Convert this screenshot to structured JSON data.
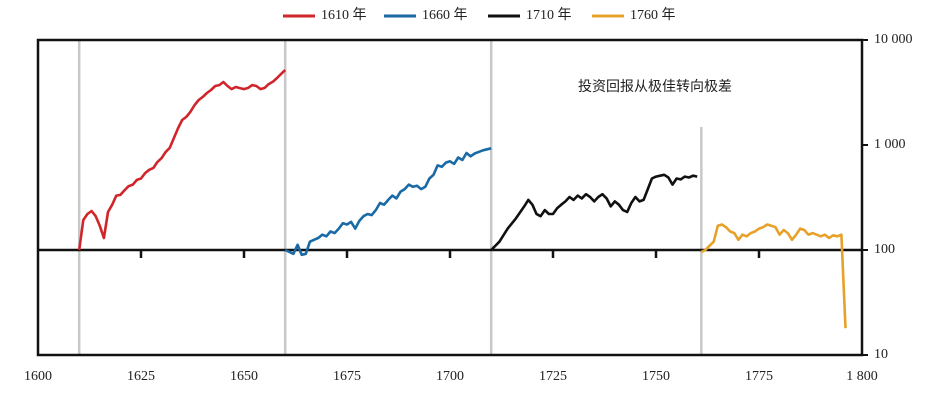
{
  "chart_data": {
    "type": "line",
    "annotation": "投资回报从极佳转向极差",
    "log_y": true,
    "xlim": [
      1600,
      1800
    ],
    "ylim": [
      10,
      10000
    ],
    "xticks": [
      1600,
      1625,
      1650,
      1675,
      1700,
      1725,
      1750,
      1775,
      {
        "value": 1800,
        "label": "1 800"
      }
    ],
    "yticks": [
      {
        "value": 10000,
        "label": "10 000"
      },
      {
        "value": 1000,
        "label": "1 000"
      },
      100,
      10
    ],
    "baseline": 100,
    "series": [
      {
        "name": "1610 年",
        "color": "#d0252b",
        "x": [
          1610,
          1611,
          1612,
          1613,
          1614,
          1615,
          1616,
          1617,
          1618,
          1619,
          1620,
          1621,
          1622,
          1623,
          1624,
          1625,
          1626,
          1627,
          1628,
          1629,
          1630,
          1631,
          1632,
          1633,
          1634,
          1635,
          1636,
          1637,
          1638,
          1639,
          1640,
          1641,
          1642,
          1643,
          1644,
          1645,
          1646,
          1647,
          1648,
          1649,
          1650,
          1651,
          1652,
          1653,
          1654,
          1655,
          1656,
          1657,
          1658,
          1659,
          1660
        ],
        "values": [
          100,
          193,
          220,
          235,
          210,
          170,
          130,
          230,
          270,
          330,
          335,
          370,
          405,
          420,
          465,
          480,
          540,
          580,
          605,
          690,
          750,
          860,
          940,
          1170,
          1450,
          1730,
          1850,
          2070,
          2400,
          2680,
          2870,
          3130,
          3340,
          3650,
          3720,
          3980,
          3650,
          3410,
          3570,
          3480,
          3410,
          3500,
          3720,
          3650,
          3410,
          3500,
          3800,
          4000,
          4350,
          4750,
          5180
        ]
      },
      {
        "name": "1660 年",
        "color": "#1a6aa6",
        "x": [
          1660,
          1662,
          1663,
          1664,
          1665,
          1666,
          1667,
          1668,
          1669,
          1670,
          1671,
          1672,
          1673,
          1674,
          1675,
          1676,
          1677,
          1678,
          1679,
          1680,
          1681,
          1682,
          1683,
          1684,
          1685,
          1686,
          1687,
          1688,
          1689,
          1690,
          1691,
          1692,
          1693,
          1694,
          1695,
          1696,
          1697,
          1698,
          1699,
          1700,
          1701,
          1702,
          1703,
          1704,
          1705,
          1706,
          1707,
          1708,
          1709,
          1710
        ],
        "values": [
          100,
          92,
          112,
          90,
          92,
          120,
          125,
          130,
          140,
          135,
          150,
          145,
          160,
          180,
          175,
          185,
          160,
          190,
          210,
          220,
          215,
          240,
          280,
          270,
          300,
          330,
          310,
          360,
          380,
          420,
          400,
          410,
          380,
          400,
          480,
          520,
          640,
          620,
          680,
          700,
          660,
          760,
          720,
          840,
          780,
          830,
          860,
          890,
          910,
          930
        ]
      },
      {
        "name": "1710 年",
        "color": "#111111",
        "x": [
          1710,
          1712,
          1714,
          1716,
          1718,
          1719,
          1720,
          1721,
          1722,
          1723,
          1724,
          1725,
          1726,
          1727,
          1728,
          1729,
          1730,
          1731,
          1732,
          1733,
          1734,
          1735,
          1736,
          1737,
          1738,
          1739,
          1740,
          1741,
          1742,
          1743,
          1744,
          1745,
          1746,
          1747,
          1748,
          1749,
          1750,
          1751,
          1752,
          1753,
          1754,
          1755,
          1756,
          1757,
          1758,
          1759,
          1760
        ],
        "values": [
          100,
          120,
          160,
          200,
          260,
          300,
          270,
          220,
          210,
          240,
          220,
          220,
          250,
          270,
          290,
          320,
          300,
          330,
          310,
          340,
          320,
          290,
          320,
          340,
          310,
          260,
          290,
          270,
          240,
          230,
          280,
          320,
          290,
          300,
          380,
          480,
          500,
          510,
          520,
          490,
          420,
          480,
          470,
          500,
          490,
          510,
          500
        ]
      },
      {
        "name": "1760 年",
        "color": "#e8a128",
        "x": [
          1761,
          1762,
          1763,
          1764,
          1765,
          1766,
          1767,
          1768,
          1769,
          1770,
          1771,
          1772,
          1773,
          1774,
          1775,
          1776,
          1777,
          1778,
          1779,
          1780,
          1781,
          1782,
          1783,
          1784,
          1785,
          1786,
          1787,
          1788,
          1789,
          1790,
          1791,
          1792,
          1793,
          1794,
          1795,
          1796
        ],
        "values": [
          96,
          100,
          110,
          120,
          170,
          175,
          165,
          150,
          145,
          125,
          140,
          135,
          145,
          150,
          160,
          165,
          175,
          170,
          165,
          140,
          155,
          145,
          125,
          140,
          160,
          155,
          140,
          145,
          140,
          135,
          140,
          130,
          138,
          135,
          140,
          18
        ]
      }
    ]
  }
}
